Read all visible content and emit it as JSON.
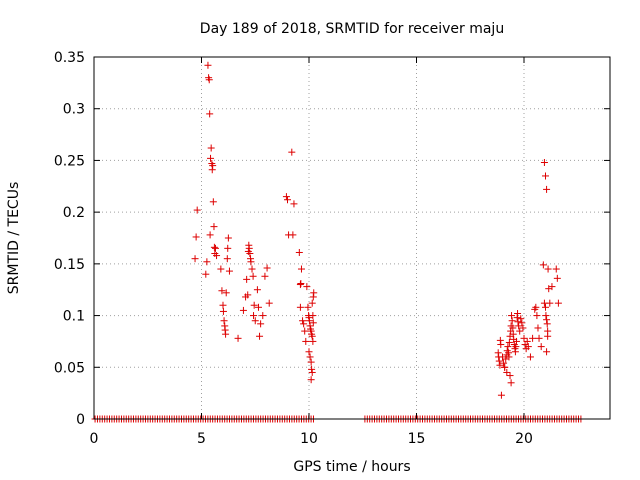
{
  "chart_data": {
    "type": "scatter",
    "title": "Day 189 of 2018, SRMTID for receiver maju",
    "xlabel": "GPS time / hours",
    "ylabel": "SRMTID / TECUs",
    "xlim": [
      0,
      24
    ],
    "ylim": [
      0,
      0.35
    ],
    "grid": true,
    "marker": "+",
    "x_ticks": [
      {
        "value": 0,
        "label": "0"
      },
      {
        "value": 5,
        "label": "5"
      },
      {
        "value": 10,
        "label": "10"
      },
      {
        "value": 15,
        "label": "15"
      },
      {
        "value": 20,
        "label": "20"
      }
    ],
    "y_ticks": [
      {
        "value": 0,
        "label": "0"
      },
      {
        "value": 0.05,
        "label": "0.05"
      },
      {
        "value": 0.1,
        "label": "0.1"
      },
      {
        "value": 0.15,
        "label": "0.15"
      },
      {
        "value": 0.2,
        "label": "0.2"
      },
      {
        "value": 0.25,
        "label": "0.25"
      },
      {
        "value": 0.3,
        "label": "0.3"
      },
      {
        "value": 0.35,
        "label": "0.35"
      }
    ],
    "baseline_segments": [
      [
        0.05,
        10.3
      ],
      [
        12.6,
        22.7
      ]
    ],
    "baseline_value": 0,
    "series": [
      {
        "name": "SRMTID",
        "color": "#dd0000",
        "points": [
          [
            4.7,
            0.155
          ],
          [
            4.75,
            0.176
          ],
          [
            4.8,
            0.202
          ],
          [
            5.2,
            0.14
          ],
          [
            5.25,
            0.152
          ],
          [
            5.3,
            0.342
          ],
          [
            5.33,
            0.33
          ],
          [
            5.36,
            0.328
          ],
          [
            5.38,
            0.295
          ],
          [
            5.4,
            0.178
          ],
          [
            5.42,
            0.252
          ],
          [
            5.45,
            0.262
          ],
          [
            5.48,
            0.247
          ],
          [
            5.5,
            0.241
          ],
          [
            5.52,
            0.245
          ],
          [
            5.55,
            0.21
          ],
          [
            5.58,
            0.186
          ],
          [
            5.6,
            0.166
          ],
          [
            5.62,
            0.16
          ],
          [
            5.65,
            0.165
          ],
          [
            5.7,
            0.158
          ],
          [
            5.9,
            0.145
          ],
          [
            5.95,
            0.124
          ],
          [
            6.0,
            0.11
          ],
          [
            6.02,
            0.104
          ],
          [
            6.05,
            0.095
          ],
          [
            6.08,
            0.09
          ],
          [
            6.1,
            0.086
          ],
          [
            6.12,
            0.082
          ],
          [
            6.15,
            0.122
          ],
          [
            6.2,
            0.155
          ],
          [
            6.22,
            0.165
          ],
          [
            6.25,
            0.175
          ],
          [
            6.3,
            0.143
          ],
          [
            6.7,
            0.078
          ],
          [
            6.95,
            0.105
          ],
          [
            7.05,
            0.118
          ],
          [
            7.1,
            0.135
          ],
          [
            7.15,
            0.12
          ],
          [
            7.18,
            0.162
          ],
          [
            7.2,
            0.168
          ],
          [
            7.22,
            0.165
          ],
          [
            7.25,
            0.16
          ],
          [
            7.28,
            0.155
          ],
          [
            7.3,
            0.152
          ],
          [
            7.35,
            0.145
          ],
          [
            7.4,
            0.138
          ],
          [
            7.42,
            0.1
          ],
          [
            7.45,
            0.11
          ],
          [
            7.5,
            0.095
          ],
          [
            7.6,
            0.125
          ],
          [
            7.65,
            0.108
          ],
          [
            7.7,
            0.08
          ],
          [
            7.75,
            0.092
          ],
          [
            7.85,
            0.1
          ],
          [
            7.95,
            0.138
          ],
          [
            8.05,
            0.146
          ],
          [
            8.15,
            0.112
          ],
          [
            8.95,
            0.215
          ],
          [
            9.0,
            0.212
          ],
          [
            9.05,
            0.178
          ],
          [
            9.2,
            0.258
          ],
          [
            9.25,
            0.178
          ],
          [
            9.3,
            0.208
          ],
          [
            9.55,
            0.161
          ],
          [
            9.6,
            0.13
          ],
          [
            9.62,
            0.131
          ],
          [
            9.65,
            0.145
          ],
          [
            9.6,
            0.108
          ],
          [
            9.7,
            0.095
          ],
          [
            9.75,
            0.092
          ],
          [
            9.8,
            0.085
          ],
          [
            9.85,
            0.075
          ],
          [
            9.9,
            0.128
          ],
          [
            9.95,
            0.108
          ],
          [
            9.98,
            0.1
          ],
          [
            10.0,
            0.098
          ],
          [
            10.02,
            0.095
          ],
          [
            10.05,
            0.09
          ],
          [
            10.07,
            0.087
          ],
          [
            10.1,
            0.085
          ],
          [
            10.12,
            0.082
          ],
          [
            10.15,
            0.08
          ],
          [
            10.18,
            0.075
          ],
          [
            10.0,
            0.065
          ],
          [
            10.05,
            0.06
          ],
          [
            10.1,
            0.055
          ],
          [
            10.12,
            0.048
          ],
          [
            10.15,
            0.045
          ],
          [
            10.1,
            0.038
          ],
          [
            10.15,
            0.112
          ],
          [
            10.2,
            0.118
          ],
          [
            10.22,
            0.122
          ],
          [
            10.18,
            0.1
          ],
          [
            10.2,
            0.093
          ],
          [
            18.8,
            0.064
          ],
          [
            18.82,
            0.06
          ],
          [
            18.85,
            0.056
          ],
          [
            18.88,
            0.052
          ],
          [
            18.9,
            0.076
          ],
          [
            18.92,
            0.072
          ],
          [
            18.95,
            0.023
          ],
          [
            19.0,
            0.06
          ],
          [
            19.05,
            0.054
          ],
          [
            19.1,
            0.05
          ],
          [
            19.15,
            0.058
          ],
          [
            19.2,
            0.062
          ],
          [
            19.22,
            0.066
          ],
          [
            19.25,
            0.07
          ],
          [
            19.28,
            0.064
          ],
          [
            19.3,
            0.06
          ],
          [
            19.32,
            0.074
          ],
          [
            19.35,
            0.08
          ],
          [
            19.38,
            0.085
          ],
          [
            19.4,
            0.09
          ],
          [
            19.42,
            0.1
          ],
          [
            19.45,
            0.095
          ],
          [
            19.48,
            0.088
          ],
          [
            19.5,
            0.082
          ],
          [
            19.52,
            0.077
          ],
          [
            19.55,
            0.072
          ],
          [
            19.58,
            0.068
          ],
          [
            19.6,
            0.065
          ],
          [
            19.62,
            0.07
          ],
          [
            19.65,
            0.075
          ],
          [
            19.68,
            0.098
          ],
          [
            19.7,
            0.102
          ],
          [
            19.72,
            0.094
          ],
          [
            19.75,
            0.09
          ],
          [
            19.8,
            0.085
          ],
          [
            19.85,
            0.097
          ],
          [
            19.9,
            0.093
          ],
          [
            19.95,
            0.088
          ],
          [
            20.0,
            0.078
          ],
          [
            20.05,
            0.072
          ],
          [
            20.1,
            0.068
          ],
          [
            20.15,
            0.075
          ],
          [
            20.2,
            0.07
          ],
          [
            20.3,
            0.06
          ],
          [
            20.4,
            0.078
          ],
          [
            19.35,
            0.042
          ],
          [
            19.4,
            0.035
          ],
          [
            19.1,
            0.05
          ],
          [
            19.2,
            0.045
          ],
          [
            20.5,
            0.106
          ],
          [
            20.55,
            0.108
          ],
          [
            20.6,
            0.1
          ],
          [
            20.65,
            0.088
          ],
          [
            20.7,
            0.078
          ],
          [
            20.8,
            0.07
          ],
          [
            20.9,
            0.149
          ],
          [
            20.95,
            0.248
          ],
          [
            21.0,
            0.235
          ],
          [
            21.05,
            0.222
          ],
          [
            20.95,
            0.112
          ],
          [
            21.0,
            0.108
          ],
          [
            21.02,
            0.1
          ],
          [
            21.05,
            0.096
          ],
          [
            21.08,
            0.092
          ],
          [
            21.1,
            0.085
          ],
          [
            21.05,
            0.065
          ],
          [
            21.1,
            0.08
          ],
          [
            21.12,
            0.145
          ],
          [
            21.15,
            0.126
          ],
          [
            21.2,
            0.112
          ],
          [
            21.3,
            0.128
          ],
          [
            21.5,
            0.145
          ],
          [
            21.55,
            0.136
          ],
          [
            21.6,
            0.112
          ]
        ]
      }
    ]
  }
}
